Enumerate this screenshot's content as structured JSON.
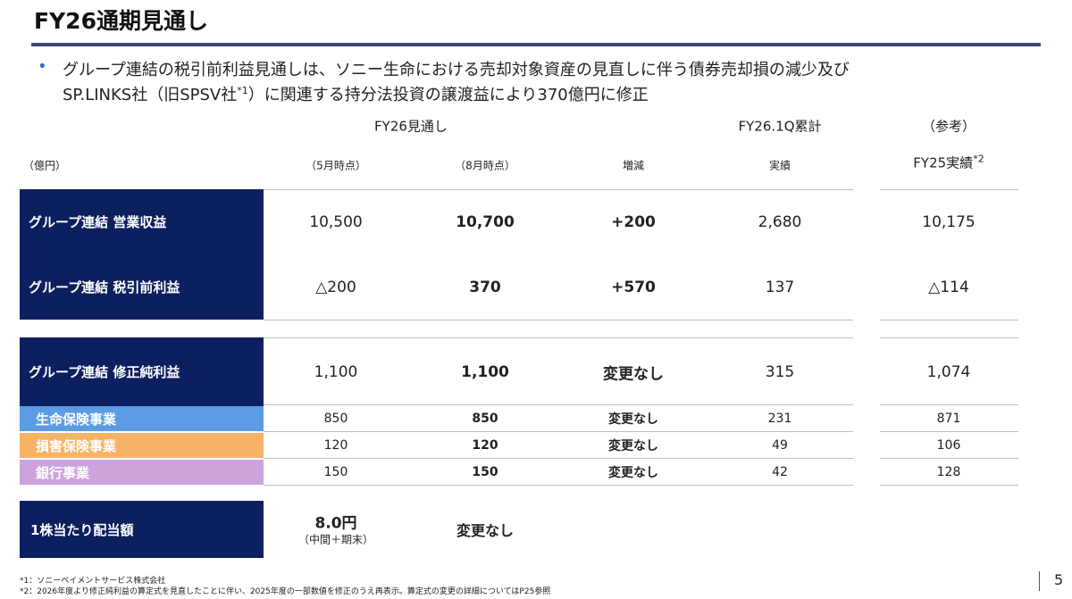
{
  "header": {
    "title": "FY26通期見通し"
  },
  "bullet": {
    "line1": "グループ連結の税引前利益見通しは、ソニー生命における売却対象資産の見直しに伴う債券売却損の減少及び",
    "line2_before": "SP.LINKS社（旧SPSV社",
    "line2_sup": "*1",
    "line2_after": "）に関連する持分法投資の譲渡益により370億円に修正"
  },
  "table": {
    "group_headers": [
      "FY26見通し",
      "FY26.1Q累計",
      "（参考）"
    ],
    "unit": "（億円）",
    "column_headers": [
      "（5月時点）",
      "（8月時点）",
      "増減",
      "実績"
    ],
    "fy25_header": {
      "text": "FY25実績",
      "sup": "*2"
    },
    "rows": [
      {
        "label": "グループ連結  営業収益",
        "values": [
          "10,500",
          "10,700",
          "+200",
          "2,680",
          "10,175"
        ]
      },
      {
        "label": "グループ連結  税引前利益",
        "values": [
          "△200",
          "370",
          "+570",
          "137",
          "△114"
        ]
      },
      {
        "label": "グループ連結  修正純利益",
        "values": [
          "1,100",
          "1,100",
          "変更なし",
          "315",
          "1,074"
        ]
      },
      {
        "label": "生命保険事業",
        "values": [
          "850",
          "850",
          "変更なし",
          "231",
          "871"
        ]
      },
      {
        "label": "損害保険事業",
        "values": [
          "120",
          "120",
          "変更なし",
          "49",
          "106"
        ]
      },
      {
        "label": "銀行事業",
        "values": [
          "150",
          "150",
          "変更なし",
          "42",
          "128"
        ]
      }
    ],
    "dividend": {
      "label": "1株当たり配当額",
      "value": "8.0円",
      "note": "（中間＋期末）",
      "change": "変更なし"
    }
  },
  "footnotes": [
    "*1：ソニーペイメントサービス株式会社",
    "*2：2026年度より修正純利益の算定式を見直したことに伴い、2025年度の一部数値を修正のうえ再表示。算定式の変更の詳細についてはP25参照"
  ],
  "page_number": "5"
}
